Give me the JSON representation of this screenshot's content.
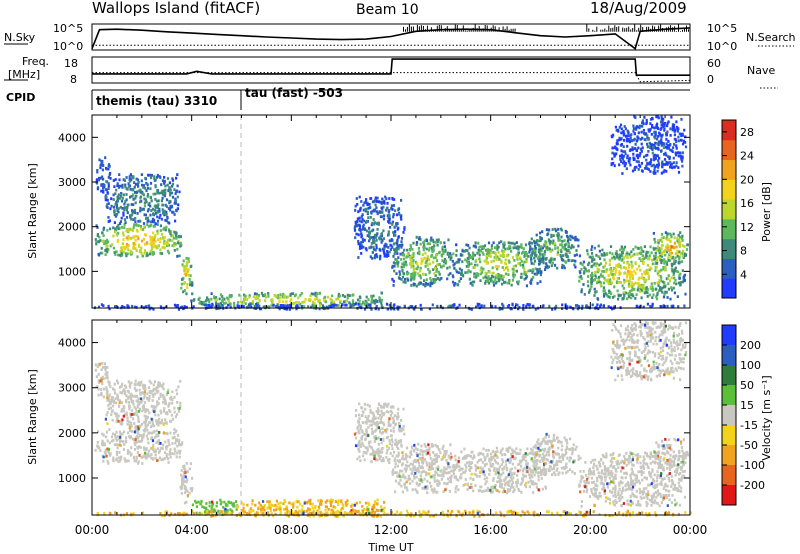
{
  "header": {
    "station": "Wallops Island (fitACF)",
    "beam": "Beam 10",
    "date": "18/Aug/2009"
  },
  "noise_panel": {
    "left_label": "N.Sky",
    "left_ticks": [
      "10^5",
      "10^0"
    ],
    "right_label": "N.Search",
    "right_ticks": [
      "10^5",
      "10^0"
    ],
    "sky_series": [
      {
        "t": 0.0,
        "v": 0.05
      },
      {
        "t": 0.3,
        "v": 0.78
      },
      {
        "t": 1.0,
        "v": 0.8
      },
      {
        "t": 2.0,
        "v": 0.76
      },
      {
        "t": 3.0,
        "v": 0.7
      },
      {
        "t": 4.0,
        "v": 0.65
      },
      {
        "t": 5.0,
        "v": 0.6
      },
      {
        "t": 6.0,
        "v": 0.55
      },
      {
        "t": 7.0,
        "v": 0.5
      },
      {
        "t": 8.0,
        "v": 0.46
      },
      {
        "t": 9.0,
        "v": 0.42
      },
      {
        "t": 10.0,
        "v": 0.4
      },
      {
        "t": 11.0,
        "v": 0.42
      },
      {
        "t": 12.0,
        "v": 0.52
      },
      {
        "t": 13.0,
        "v": 0.72
      },
      {
        "t": 14.0,
        "v": 0.78
      },
      {
        "t": 15.0,
        "v": 0.8
      },
      {
        "t": 16.0,
        "v": 0.78
      },
      {
        "t": 17.0,
        "v": 0.66
      },
      {
        "t": 18.0,
        "v": 0.55
      },
      {
        "t": 19.0,
        "v": 0.5
      },
      {
        "t": 20.0,
        "v": 0.55
      },
      {
        "t": 21.0,
        "v": 0.62
      },
      {
        "t": 21.8,
        "v": 0.05
      },
      {
        "t": 22.0,
        "v": 0.72
      },
      {
        "t": 23.0,
        "v": 0.8
      },
      {
        "t": 24.0,
        "v": 0.85
      }
    ],
    "search_series": [
      {
        "t": 0.0,
        "v": 0.18
      },
      {
        "t": 6.0,
        "v": 0.18
      },
      {
        "t": 12.0,
        "v": 0.18
      },
      {
        "t": 18.0,
        "v": 0.18
      },
      {
        "t": 24.0,
        "v": 0.18
      }
    ]
  },
  "freq_panel": {
    "left_label_top": "Freq.",
    "left_label_unit": "[MHz]",
    "left_ticks": [
      "18",
      "8"
    ],
    "right_label": "Nave",
    "right_ticks": [
      "60",
      "0"
    ],
    "freq_series": [
      {
        "t": 0.0,
        "v": 0.35
      },
      {
        "t": 3.8,
        "v": 0.35
      },
      {
        "t": 4.2,
        "v": 0.45
      },
      {
        "t": 4.8,
        "v": 0.35
      },
      {
        "t": 12.0,
        "v": 0.35
      },
      {
        "t": 12.05,
        "v": 0.92
      },
      {
        "t": 21.8,
        "v": 0.92
      },
      {
        "t": 21.85,
        "v": 0.3
      },
      {
        "t": 24.0,
        "v": 0.3
      }
    ],
    "nave_series": [
      {
        "t": 0.0,
        "v": 0.4
      },
      {
        "t": 12.0,
        "v": 0.4
      },
      {
        "t": 21.8,
        "v": 0.4
      },
      {
        "t": 22.0,
        "v": 0.05
      },
      {
        "t": 24.0,
        "v": 0.1
      }
    ]
  },
  "cpid_panel": {
    "label": "CPID",
    "programs": [
      {
        "name": "themis (tau) 3310",
        "t_start": 0.0
      },
      {
        "name": "tau (fast) -503",
        "t_start": 6.0
      }
    ]
  },
  "chart_data": [
    {
      "type": "heatmap",
      "name": "power",
      "xlabel": "",
      "ylabel": "Slant Range [km]",
      "xlim": [
        0,
        24
      ],
      "ylim": [
        180,
        4500
      ],
      "yticks": [
        1000,
        2000,
        3000,
        4000
      ],
      "colorbar": {
        "label": "Power [dB]",
        "ticks": [
          4,
          8,
          12,
          16,
          20,
          24,
          28
        ],
        "range": [
          0,
          30
        ],
        "colors": [
          "#1f3cff",
          "#2a5fc0",
          "#3d8a7a",
          "#5cb85c",
          "#bcd62b",
          "#f2d21a",
          "#f0a31e",
          "#e8651f",
          "#d92d1f"
        ]
      },
      "echo_regions": [
        {
          "t0": 0.1,
          "t1": 3.6,
          "r0": 1350,
          "r1": 2100,
          "level": 22
        },
        {
          "t0": 0.5,
          "t1": 3.5,
          "r0": 2100,
          "r1": 3200,
          "level": 10
        },
        {
          "t0": 0.1,
          "t1": 0.7,
          "r0": 2800,
          "r1": 3600,
          "level": 6
        },
        {
          "t0": 3.5,
          "t1": 4.0,
          "r0": 450,
          "r1": 1400,
          "level": 20
        },
        {
          "t0": 3.9,
          "t1": 11.8,
          "r0": 200,
          "r1": 550,
          "level": 18
        },
        {
          "t0": 10.5,
          "t1": 12.5,
          "r0": 1300,
          "r1": 2700,
          "level": 8
        },
        {
          "t0": 12.0,
          "t1": 14.5,
          "r0": 700,
          "r1": 1800,
          "level": 16
        },
        {
          "t0": 14.5,
          "t1": 18.2,
          "r0": 700,
          "r1": 1700,
          "level": 17
        },
        {
          "t0": 17.5,
          "t1": 19.5,
          "r0": 1100,
          "r1": 2000,
          "level": 14
        },
        {
          "t0": 19.5,
          "t1": 23.8,
          "r0": 400,
          "r1": 1600,
          "level": 19
        },
        {
          "t0": 22.5,
          "t1": 23.9,
          "r0": 1200,
          "r1": 1900,
          "level": 22
        },
        {
          "t0": 20.8,
          "t1": 23.8,
          "r0": 3200,
          "r1": 4500,
          "level": 5
        },
        {
          "t0": 0.0,
          "t1": 24.0,
          "r0": 180,
          "r1": 300,
          "level": 6
        }
      ]
    },
    {
      "type": "heatmap",
      "name": "velocity",
      "xlabel": "Time UT",
      "ylabel": "Slant Range [km]",
      "xlim": [
        0,
        24
      ],
      "xticks": [
        "00:00",
        "04:00",
        "08:00",
        "12:00",
        "16:00",
        "20:00",
        "00:00"
      ],
      "ylim": [
        180,
        4500
      ],
      "yticks": [
        1000,
        2000,
        3000,
        4000
      ],
      "colorbar": {
        "label": "Velocity [m s⁻¹]",
        "ticks": [
          200,
          100,
          50,
          15,
          -15,
          -50,
          -100,
          -200
        ],
        "colors": [
          "#1f3cff",
          "#2a5fc0",
          "#2e7d3a",
          "#5cbf3a",
          "#c8c8c0",
          "#f2d21a",
          "#f0a31e",
          "#e8651f",
          "#e01818"
        ]
      },
      "echo_regions": [
        {
          "t0": 0.1,
          "t1": 3.6,
          "r0": 1350,
          "r1": 2100,
          "v": 0
        },
        {
          "t0": 0.5,
          "t1": 3.5,
          "r0": 2100,
          "r1": 3200,
          "v": 0
        },
        {
          "t0": 0.1,
          "t1": 0.7,
          "r0": 2800,
          "r1": 3600,
          "v": 0
        },
        {
          "t0": 3.5,
          "t1": 4.0,
          "r0": 450,
          "r1": 1400,
          "v": 0
        },
        {
          "t0": 3.9,
          "t1": 5.8,
          "r0": 200,
          "r1": 550,
          "v": 40
        },
        {
          "t0": 5.8,
          "t1": 11.8,
          "r0": 200,
          "r1": 550,
          "v": -40
        },
        {
          "t0": 10.5,
          "t1": 12.5,
          "r0": 1300,
          "r1": 2700,
          "v": 0
        },
        {
          "t0": 12.0,
          "t1": 14.5,
          "r0": 700,
          "r1": 1800,
          "v": 0
        },
        {
          "t0": 14.5,
          "t1": 18.2,
          "r0": 700,
          "r1": 1700,
          "v": 0
        },
        {
          "t0": 17.5,
          "t1": 19.5,
          "r0": 1100,
          "r1": 2000,
          "v": 0
        },
        {
          "t0": 19.5,
          "t1": 23.8,
          "r0": 400,
          "r1": 1600,
          "v": 0
        },
        {
          "t0": 22.5,
          "t1": 23.9,
          "r0": 1200,
          "r1": 1900,
          "v": 0
        },
        {
          "t0": 20.8,
          "t1": 23.8,
          "r0": 3200,
          "r1": 4500,
          "v": 0
        },
        {
          "t0": 0.0,
          "t1": 24.0,
          "r0": 180,
          "r1": 300,
          "v": -40
        }
      ]
    }
  ]
}
